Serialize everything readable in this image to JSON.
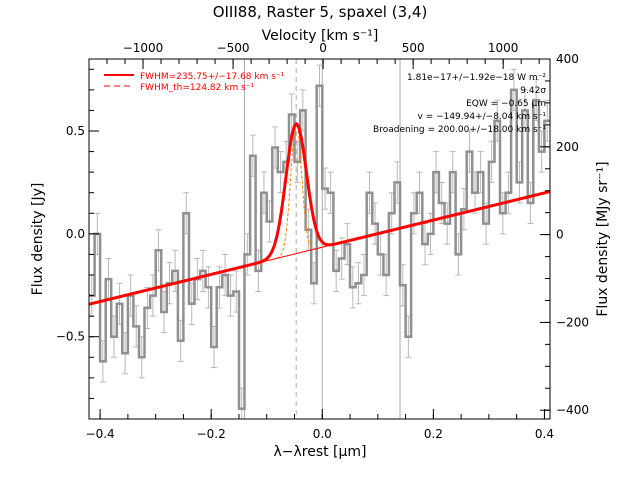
{
  "title": "OIII88, Raster 5, spaxel (3,4)",
  "chart_data": {
    "type": "line",
    "x_axis": {
      "label": "λ−λrest [μm]",
      "range": [
        -0.42,
        0.41
      ],
      "ticks": [
        -0.4,
        -0.2,
        0.0,
        0.2,
        0.4
      ],
      "tick_labels": [
        "−0.4",
        "−0.2",
        "0.0",
        "0.2",
        "0.4"
      ]
    },
    "y_axis": {
      "label": "Flux density [Jy]",
      "range": [
        -0.9,
        0.85
      ],
      "ticks": [
        -0.5,
        0.0,
        0.5
      ],
      "tick_labels": [
        "−0.5",
        "0.0",
        "0.5"
      ]
    },
    "top_axis": {
      "label": "Velocity [km s⁻¹]",
      "range": [
        -1300,
        1260
      ],
      "ticks": [
        -1000,
        -500,
        0,
        500,
        1000
      ],
      "tick_labels": [
        "−1000",
        "−500",
        "0",
        "500",
        "1000"
      ]
    },
    "right_axis": {
      "label": "Flux density [MJy sr⁻¹]",
      "range": [
        -420,
        400
      ],
      "ticks": [
        -400,
        -200,
        0,
        200,
        400
      ],
      "tick_labels": [
        "−400",
        "−200",
        "0",
        "200",
        "400"
      ]
    },
    "legend": {
      "placement": "top-left",
      "entries": [
        {
          "label": "FWHM=235.75+/−17.68 km s⁻¹",
          "style": "solid",
          "color": "#ff0000"
        },
        {
          "label": "FWHM_th=124.82 km s⁻¹",
          "style": "dashed",
          "color": "#ff0000"
        }
      ]
    },
    "annotations": [
      "1.81e−17+/−1.92e−18 W m⁻²",
      "9.42σ",
      "EQW = −0.65 μm",
      "v = −149.94+/−8.04 km s⁻¹",
      "Broadening = 200.00+/−18.00 km s⁻¹"
    ],
    "vertical_lines": [
      {
        "x": -0.14,
        "style": "solid",
        "color": "#aaaaaa"
      },
      {
        "x": 0.0,
        "style": "solid",
        "color": "#aaaaaa"
      },
      {
        "x": 0.14,
        "style": "solid",
        "color": "#aaaaaa"
      },
      {
        "x": -0.047,
        "style": "dashed",
        "color": "#aaaaaa"
      }
    ],
    "series": [
      {
        "name": "Spectrum",
        "style": "step",
        "color": "#909090",
        "x": [
          -0.415,
          -0.405,
          -0.395,
          -0.385,
          -0.375,
          -0.365,
          -0.355,
          -0.345,
          -0.335,
          -0.325,
          -0.315,
          -0.305,
          -0.295,
          -0.285,
          -0.275,
          -0.265,
          -0.255,
          -0.245,
          -0.235,
          -0.225,
          -0.215,
          -0.205,
          -0.195,
          -0.185,
          -0.175,
          -0.165,
          -0.155,
          -0.145,
          -0.135,
          -0.125,
          -0.115,
          -0.105,
          -0.095,
          -0.085,
          -0.075,
          -0.065,
          -0.055,
          -0.045,
          -0.035,
          -0.025,
          -0.015,
          -0.005,
          0.005,
          0.015,
          0.025,
          0.035,
          0.045,
          0.055,
          0.065,
          0.075,
          0.085,
          0.095,
          0.105,
          0.115,
          0.125,
          0.135,
          0.145,
          0.155,
          0.165,
          0.175,
          0.185,
          0.195,
          0.205,
          0.215,
          0.225,
          0.235,
          0.245,
          0.255,
          0.265,
          0.275,
          0.285,
          0.295,
          0.305,
          0.315,
          0.325,
          0.335,
          0.345,
          0.355,
          0.365,
          0.375,
          0.385,
          0.395,
          0.405
        ],
        "y": [
          -0.3,
          0.0,
          -0.62,
          -0.22,
          -0.5,
          -0.34,
          -0.58,
          -0.3,
          -0.45,
          -0.6,
          -0.36,
          -0.3,
          -0.08,
          -0.38,
          -0.24,
          -0.18,
          -0.52,
          0.1,
          -0.34,
          -0.22,
          -0.18,
          -0.26,
          -0.55,
          -0.26,
          -0.2,
          -0.3,
          -0.28,
          -0.85,
          -0.1,
          0.38,
          -0.18,
          0.2,
          0.06,
          0.42,
          0.3,
          0.35,
          0.58,
          0.35,
          0.6,
          0.02,
          -0.24,
          0.72,
          0.22,
          0.2,
          -0.18,
          -0.12,
          -0.05,
          -0.26,
          -0.24,
          -0.2,
          0.2,
          0.05,
          -0.1,
          -0.2,
          0.1,
          0.25,
          -0.25,
          -0.5,
          0.1,
          0.2,
          -0.05,
          0.0,
          0.3,
          0.15,
          0.05,
          0.3,
          -0.1,
          0.12,
          0.4,
          0.2,
          0.3,
          0.05,
          0.35,
          0.55,
          0.1,
          0.2,
          0.7,
          0.25,
          0.6,
          0.15,
          0.65,
          0.4,
          0.55
        ],
        "err": 0.1
      },
      {
        "name": "Fit",
        "style": "solid",
        "color": "#ff0000",
        "model": {
          "continuum_slope": 0.66,
          "continuum_intercept": -0.065,
          "amplitude": 0.63,
          "center": -0.047,
          "sigma": 0.0185
        }
      },
      {
        "name": "Theoretical line profile",
        "style": "dashed",
        "color": "#ff8000",
        "model": {
          "amplitude": 0.63,
          "center": -0.047,
          "sigma": 0.0098
        }
      }
    ]
  }
}
